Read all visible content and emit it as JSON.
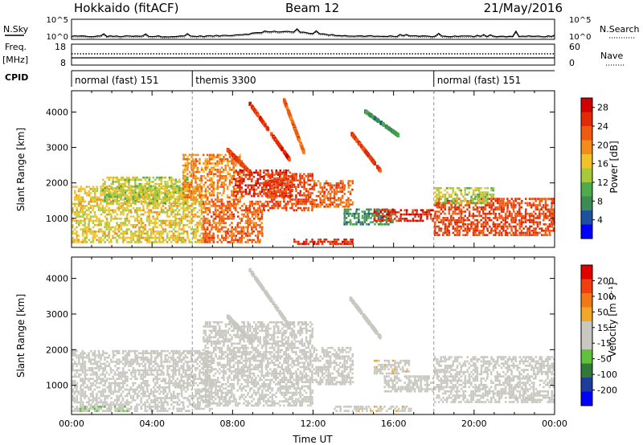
{
  "header": {
    "station": "Hokkaido (fitACF)",
    "beam": "Beam 12",
    "date": "21/May/2016"
  },
  "top_panel": {
    "left_label": "N.Sky",
    "left_ticks": [
      "10^5",
      "10^0"
    ],
    "right_label": "N.Search",
    "right_ticks": [
      "10^5",
      "10^0"
    ]
  },
  "freq_panel": {
    "left_label": "Freq.",
    "left_unit": "[MHz]",
    "left_ticks": [
      "18",
      "8"
    ],
    "right_label": "Nave",
    "right_ticks": [
      "60",
      "0"
    ]
  },
  "cpid": {
    "label": "CPID",
    "segments": [
      {
        "name": "normal (fast) 151",
        "start_h": 0,
        "end_h": 6
      },
      {
        "name": "themis 3300",
        "start_h": 6,
        "end_h": 18
      },
      {
        "name": "normal (fast) 151",
        "start_h": 18,
        "end_h": 24
      }
    ]
  },
  "colors": {
    "power": [
      "#0000ff",
      "#1f4fa0",
      "#3c8a55",
      "#4daa4d",
      "#a8c83c",
      "#f2c22a",
      "#f28c1a",
      "#f05a10",
      "#e02a08",
      "#d00000"
    ],
    "velocity": [
      "#0000ff",
      "#1e3c9c",
      "#2f7a3a",
      "#5fc23a",
      "#c8c8c0",
      "#c8c8c0",
      "#f0a828",
      "#f07818",
      "#f04010",
      "#e00000"
    ],
    "ground_scatter": "#b4b4ae"
  },
  "chart_data": [
    {
      "type": "heatmap",
      "title": "Power",
      "xlabel": "",
      "ylabel": "Slant Range [km]",
      "xlim_hours": [
        0,
        24
      ],
      "x_ticks": [
        "00:00",
        "04:00",
        "08:00",
        "12:00",
        "16:00",
        "20:00",
        "00:00"
      ],
      "ylim": [
        180,
        4600
      ],
      "y_ticks": [
        1000,
        2000,
        3000,
        4000
      ],
      "colorbar": {
        "label": "Power [dB]",
        "ticks": [
          4,
          8,
          12,
          16,
          20,
          24,
          28
        ],
        "range": [
          0,
          30
        ]
      },
      "scatter_regions": [
        {
          "t0": 0,
          "t1": 6.5,
          "r0": 300,
          "r1": 1900,
          "val": 16
        },
        {
          "t0": 1.5,
          "t1": 5.8,
          "r0": 1400,
          "r1": 2200,
          "val": 14
        },
        {
          "t0": 5.5,
          "t1": 8.5,
          "r0": 1500,
          "r1": 2800,
          "val": 20
        },
        {
          "t0": 6.5,
          "t1": 9.5,
          "r0": 300,
          "r1": 1500,
          "val": 22
        },
        {
          "t0": 8,
          "t1": 11,
          "r0": 1600,
          "r1": 2400,
          "val": 26
        },
        {
          "t0": 9.5,
          "t1": 12,
          "r0": 1200,
          "r1": 2300,
          "val": 24
        },
        {
          "t0": 12,
          "t1": 14,
          "r0": 1300,
          "r1": 2100,
          "val": 22
        },
        {
          "t0": 13.5,
          "t1": 16,
          "r0": 800,
          "r1": 1300,
          "val": 8
        },
        {
          "t0": 15,
          "t1": 18,
          "r0": 900,
          "r1": 1250,
          "val": 26
        },
        {
          "t0": 18,
          "t1": 24,
          "r0": 500,
          "r1": 1600,
          "val": 24
        },
        {
          "t0": 18,
          "t1": 21,
          "r0": 1400,
          "r1": 1900,
          "val": 14
        },
        {
          "t0": 11,
          "t1": 14,
          "r0": 250,
          "r1": 450,
          "val": 26
        }
      ],
      "streaks": [
        {
          "t0": 7.7,
          "t1": 8.9,
          "r0": 2900,
          "r1": 2200,
          "val": 24
        },
        {
          "t0": 8.8,
          "t1": 10.8,
          "r0": 4200,
          "r1": 2600,
          "val": 26
        },
        {
          "t0": 10.5,
          "t1": 11.5,
          "r0": 4300,
          "r1": 2800,
          "val": 22
        },
        {
          "t0": 13.8,
          "t1": 15.3,
          "r0": 3400,
          "r1": 2300,
          "val": 24
        },
        {
          "t0": 14.5,
          "t1": 16.2,
          "r0": 4000,
          "r1": 3300,
          "val": 8
        }
      ]
    },
    {
      "type": "heatmap",
      "title": "Velocity",
      "xlabel": "Time UT",
      "ylabel": "Slant Range [km]",
      "xlim_hours": [
        0,
        24
      ],
      "x_ticks": [
        "00:00",
        "04:00",
        "08:00",
        "12:00",
        "16:00",
        "20:00",
        "00:00"
      ],
      "ylim": [
        180,
        4600
      ],
      "y_ticks": [
        1000,
        2000,
        3000,
        4000
      ],
      "colorbar": {
        "label": "Velocity [m s⁻¹]",
        "ticks": [
          200,
          100,
          50,
          15,
          -15,
          -50,
          -100,
          -200
        ],
        "range": [
          -250,
          250
        ]
      },
      "scatter_regions": [
        {
          "t0": 0,
          "t1": 7,
          "r0": 250,
          "r1": 2000,
          "val": 0
        },
        {
          "t0": 6.5,
          "t1": 12,
          "r0": 400,
          "r1": 2800,
          "val": 0
        },
        {
          "t0": 12,
          "t1": 14,
          "r0": 1000,
          "r1": 2100,
          "val": 0
        },
        {
          "t0": 15,
          "t1": 16.8,
          "r0": 1300,
          "r1": 1700,
          "val": 35
        },
        {
          "t0": 15.5,
          "t1": 18,
          "r0": 800,
          "r1": 1250,
          "val": -30
        },
        {
          "t0": 18,
          "t1": 24,
          "r0": 500,
          "r1": 1800,
          "val": 0
        },
        {
          "t0": 0,
          "t1": 3,
          "r0": 250,
          "r1": 420,
          "val": -40
        },
        {
          "t0": 13,
          "t1": 17,
          "r0": 250,
          "r1": 420,
          "val": 35
        }
      ],
      "streaks": [
        {
          "t0": 7.7,
          "t1": 8.9,
          "r0": 2900,
          "r1": 2200,
          "val": -30
        },
        {
          "t0": 8.8,
          "t1": 10.8,
          "r0": 4200,
          "r1": 2600,
          "val": 0
        },
        {
          "t0": 13.8,
          "t1": 15.3,
          "r0": 3400,
          "r1": 2300,
          "val": 0
        }
      ]
    }
  ]
}
